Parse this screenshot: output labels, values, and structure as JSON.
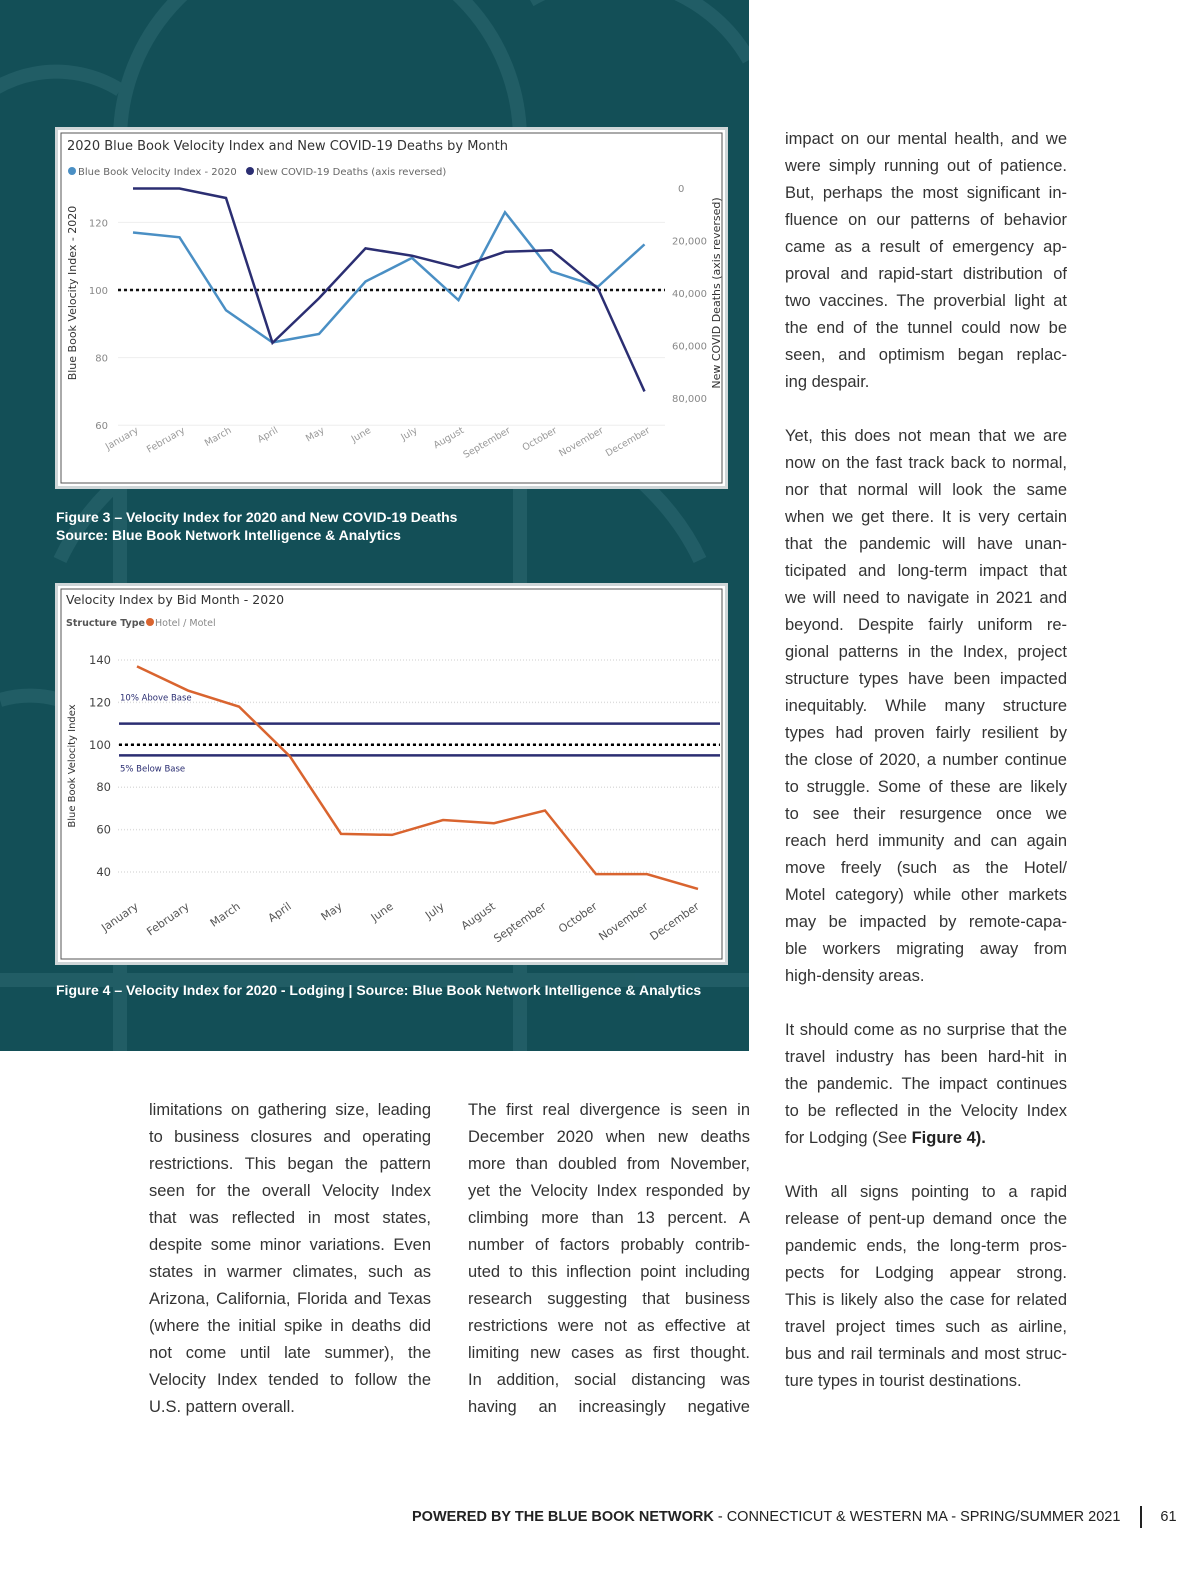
{
  "figure3": {
    "caption_line1": "Figure 3 – Velocity Index for 2020 and New COVID-19 Deaths",
    "caption_line2": "Source: Blue Book Network Intelligence & Analytics"
  },
  "figure4": {
    "caption": "Figure 4 – Velocity Index for 2020 - Lodging | Source: Blue Book Network Intelligence & Analytics"
  },
  "chart_data": [
    {
      "type": "line",
      "title": "2020 Blue Book Velocity Index and New COVID-19 Deaths by Month",
      "categories": [
        "January",
        "February",
        "March",
        "April",
        "May",
        "June",
        "July",
        "August",
        "September",
        "October",
        "November",
        "December"
      ],
      "ylabel": "Blue Book Velocity Index - 2020",
      "y2label": "New COVID Deaths (axis reversed)",
      "ylim": [
        60,
        130
      ],
      "yticks": [
        "120",
        "100",
        "80",
        "60"
      ],
      "ytick_values": [
        120,
        100,
        80,
        60
      ],
      "y2lim": [
        0,
        80000
      ],
      "y2_reversed": true,
      "y2ticks": [
        "0",
        "20,000",
        "40,000",
        "60,000",
        "80,000"
      ],
      "y2tick_values": [
        0,
        20000,
        40000,
        60000,
        80000
      ],
      "reference_line": 100,
      "legend_position": "top-left",
      "series": [
        {
          "name": "Blue Book Velocity Index - 2020",
          "axis": "left",
          "color": "#4a8fc4",
          "values": [
            117,
            115.6,
            94,
            84.5,
            87,
            102.5,
            109.5,
            97,
            123,
            105.5,
            101,
            113.5
          ]
        },
        {
          "name": "New COVID-19 Deaths (axis reversed)",
          "axis": "right",
          "color": "#2b2e72",
          "values": [
            200,
            200,
            3800,
            59000,
            42000,
            23000,
            25800,
            30300,
            24300,
            23700,
            38300,
            77500
          ]
        }
      ]
    },
    {
      "type": "line",
      "title": "Velocity Index by Bid Month - 2020",
      "legend_title": "Structure Type",
      "categories": [
        "January",
        "February",
        "March",
        "April",
        "May",
        "June",
        "July",
        "August",
        "September",
        "October",
        "November",
        "December"
      ],
      "ylabel": "Blue Book Velocity Index",
      "ylim": [
        30,
        145
      ],
      "yticks": [
        "140",
        "120",
        "100",
        "80",
        "60",
        "40"
      ],
      "ytick_values": [
        140,
        120,
        100,
        80,
        60,
        40
      ],
      "legend_position": "top-left",
      "reference_lines": [
        {
          "value": 110,
          "label": "10% Above Base",
          "color": "#2b2e72"
        },
        {
          "value": 100,
          "label": "",
          "color": "#000000"
        },
        {
          "value": 95,
          "label": "5% Below Base",
          "color": "#2b2e72"
        }
      ],
      "series": [
        {
          "name": "Hotel / Motel",
          "color": "#d9642f",
          "values": [
            137,
            125.6,
            118,
            94.5,
            58,
            57.5,
            64.5,
            63,
            69,
            39,
            39,
            32
          ]
        }
      ]
    }
  ],
  "columns": [
    [
      [
        [
          "limitations on gathering size, leading"
        ],
        [
          "to business closures and operating"
        ],
        [
          "restrictions. This began the pattern"
        ],
        [
          "seen for the overall Velocity Index"
        ],
        [
          "that was reflected in most states,"
        ],
        [
          "despite some minor variations. Even"
        ],
        [
          "states in warmer climates, such as"
        ],
        [
          "Arizona, California, Florida and Texas"
        ],
        [
          "(where the initial spike in deaths did"
        ],
        [
          "not come until late summer), the"
        ],
        [
          "Velocity Index tended to follow the"
        ],
        [
          "U.S. pattern overall."
        ]
      ]
    ],
    [
      [
        [
          "The first real divergence is seen in"
        ],
        [
          "December 2020 when new deaths"
        ],
        [
          "more than doubled from November,"
        ],
        [
          "yet the Velocity Index responded by"
        ],
        [
          "climbing more than 13 percent. A"
        ],
        [
          "number of factors probably contrib-"
        ],
        [
          "uted to this inflection point including"
        ],
        [
          "research suggesting that business"
        ],
        [
          "restrictions were not as effective at"
        ],
        [
          "limiting new cases as first thought."
        ],
        [
          "In addition, social distancing was"
        ],
        [
          "having an increasingly negative"
        ]
      ]
    ],
    [
      [
        [
          "impact on our mental health, and we"
        ],
        [
          "were simply running out of patience."
        ],
        [
          "But, perhaps the most significant in-"
        ],
        [
          "fluence on our patterns of behavior"
        ],
        [
          "came as a result of emergency ap-"
        ],
        [
          "proval and rapid-start distribution of"
        ],
        [
          "two vaccines. The proverbial light at"
        ],
        [
          "the end of the tunnel could now be"
        ],
        [
          "seen, and optimism began replac-"
        ],
        [
          "ing despair."
        ]
      ],
      [
        [
          "Yet, this does not mean that we are"
        ],
        [
          "now on the fast track back to normal,"
        ],
        [
          "nor that normal will look the same"
        ],
        [
          "when we get there. It is very certain"
        ],
        [
          "that the pandemic will have unan-"
        ],
        [
          "ticipated and long-term impact that"
        ],
        [
          "we will need to navigate in 2021 and"
        ],
        [
          "beyond. Despite fairly uniform re-"
        ],
        [
          "gional patterns in the Index, project"
        ],
        [
          "structure types have been impacted"
        ],
        [
          "inequitably. While many structure"
        ],
        [
          "types had proven fairly resilient by"
        ],
        [
          "the close of 2020, a number continue"
        ],
        [
          "to struggle. Some of these are likely"
        ],
        [
          "to see their resurgence once we"
        ],
        [
          "reach herd immunity and can again"
        ],
        [
          "move freely (such as the Hotel/"
        ],
        [
          "Motel category) while other markets"
        ],
        [
          "may be impacted by remote-capa-"
        ],
        [
          "ble workers migrating away from"
        ],
        [
          "high-density areas."
        ]
      ],
      [
        [
          "It should come as no surprise that the"
        ],
        [
          "travel industry has been hard-hit in"
        ],
        [
          "the pandemic. The impact continues"
        ],
        [
          "to be reflected in the Velocity Index"
        ],
        [
          "for Lodging (See ",
          "*Figure 4",
          "*)."
        ]
      ],
      [
        [
          "With all signs pointing to a rapid"
        ],
        [
          "release of pent-up demand once the"
        ],
        [
          "pandemic ends, the long-term pros-"
        ],
        [
          "pects for Lodging appear strong."
        ],
        [
          "This is likely also the case for related"
        ],
        [
          "travel project times such as airline,"
        ],
        [
          "bus and rail terminals and most struc-"
        ],
        [
          "ture types in tourist destinations."
        ]
      ]
    ]
  ],
  "footer": {
    "brand": "POWERED BY THE BLUE BOOK NETWORK",
    "edition": " - CONNECTICUT & WESTERN MA - SPRING/SUMMER 2021",
    "page_number": "61"
  }
}
